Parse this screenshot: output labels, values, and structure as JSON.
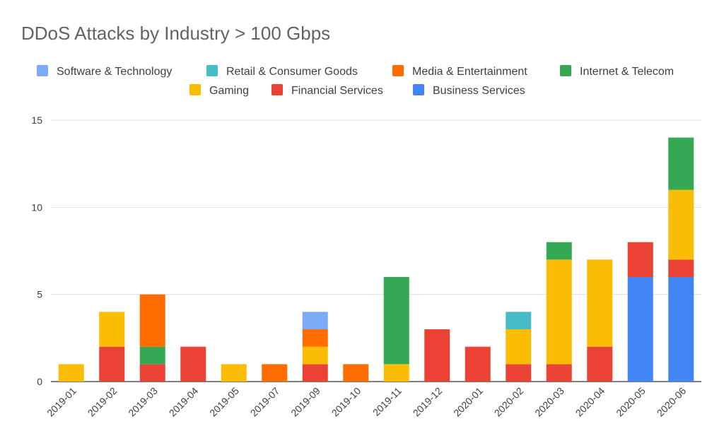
{
  "chart_data": {
    "type": "bar",
    "stacked": true,
    "title": "DDoS Attacks by Industry > 100 Gbps",
    "xlabel": "",
    "ylabel": "",
    "ylim": [
      0,
      15
    ],
    "yticks": [
      0,
      5,
      10,
      15
    ],
    "grid": true,
    "legend_position": "top",
    "categories": [
      "2019-01",
      "2019-02",
      "2019-03",
      "2019-04",
      "2019-05",
      "2019-07",
      "2019-09",
      "2019-10",
      "2019-11",
      "2019-12",
      "2020-01",
      "2020-02",
      "2020-03",
      "2020-04",
      "2020-05",
      "2020-06"
    ],
    "series": [
      {
        "name": "Business Services",
        "color": "#4285f4",
        "values": [
          0,
          0,
          0,
          0,
          0,
          0,
          0,
          0,
          0,
          0,
          0,
          0,
          0,
          0,
          6,
          6
        ]
      },
      {
        "name": "Financial Services",
        "color": "#ea4335",
        "values": [
          0,
          2,
          1,
          2,
          0,
          0,
          1,
          0,
          0,
          3,
          2,
          1,
          1,
          2,
          2,
          1
        ]
      },
      {
        "name": "Gaming",
        "color": "#fbbc04",
        "values": [
          1,
          2,
          0,
          0,
          1,
          0,
          1,
          0,
          1,
          0,
          0,
          2,
          6,
          5,
          0,
          4
        ]
      },
      {
        "name": "Internet & Telecom",
        "color": "#34a853",
        "values": [
          0,
          0,
          1,
          0,
          0,
          0,
          0,
          0,
          5,
          0,
          0,
          0,
          1,
          0,
          0,
          3
        ]
      },
      {
        "name": "Media & Entertainment",
        "color": "#ff6d01",
        "values": [
          0,
          0,
          3,
          0,
          0,
          1,
          1,
          1,
          0,
          0,
          0,
          0,
          0,
          0,
          0,
          0
        ]
      },
      {
        "name": "Retail & Consumer Goods",
        "color": "#46bdc6",
        "values": [
          0,
          0,
          0,
          0,
          0,
          0,
          0,
          0,
          0,
          0,
          0,
          1,
          0,
          0,
          0,
          0
        ]
      },
      {
        "name": "Software & Technology",
        "color": "#7baaf7",
        "values": [
          0,
          0,
          0,
          0,
          0,
          0,
          1,
          0,
          0,
          0,
          0,
          0,
          0,
          0,
          0,
          0
        ]
      }
    ],
    "legend_order": [
      "Software & Technology",
      "Retail & Consumer Goods",
      "Media & Entertainment",
      "Internet & Telecom",
      "Gaming",
      "Financial Services",
      "Business Services"
    ]
  }
}
